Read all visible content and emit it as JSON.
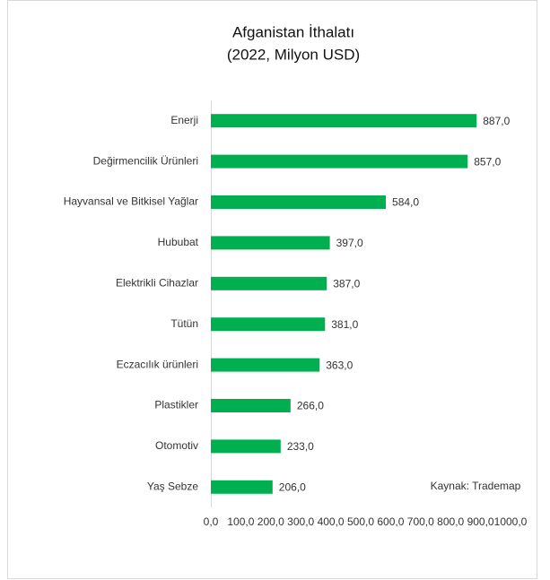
{
  "chart_data": {
    "type": "bar",
    "orientation": "horizontal",
    "title": "Afganistan İthalatı",
    "subtitle": "(2022, Milyon USD)",
    "annotation": "Kaynak: Trademap",
    "categories": [
      "Enerji",
      "Değirmencilik Ürünleri",
      "Hayvansal ve Bitkisel Yağlar",
      "Hububat",
      "Elektrikli Cihazlar",
      "Tütün",
      "Eczacılık ürünleri",
      "Plastikler",
      "Otomotiv",
      "Yaş Sebze"
    ],
    "values": [
      887,
      857,
      584,
      397,
      387,
      381,
      363,
      266,
      233,
      206
    ],
    "value_labels": [
      "887,0",
      "857,0",
      "584,0",
      "397,0",
      "387,0",
      "381,0",
      "363,0",
      "266,0",
      "233,0",
      "206,0"
    ],
    "color": "#00b050",
    "xlim": [
      0,
      1000
    ],
    "xticks": [
      {
        "value": 0,
        "label": "0,0"
      },
      {
        "value": 100,
        "label": "100,0"
      },
      {
        "value": 200,
        "label": "200,0"
      },
      {
        "value": 300,
        "label": "300,0"
      },
      {
        "value": 400,
        "label": "400,0"
      },
      {
        "value": 500,
        "label": "500,0"
      },
      {
        "value": 600,
        "label": "600,0"
      },
      {
        "value": 700,
        "label": "700,0"
      },
      {
        "value": 800,
        "label": "800,0"
      },
      {
        "value": 900,
        "label": "900,0"
      },
      {
        "value": 1000,
        "label": "1000,0"
      }
    ],
    "grid": false
  }
}
